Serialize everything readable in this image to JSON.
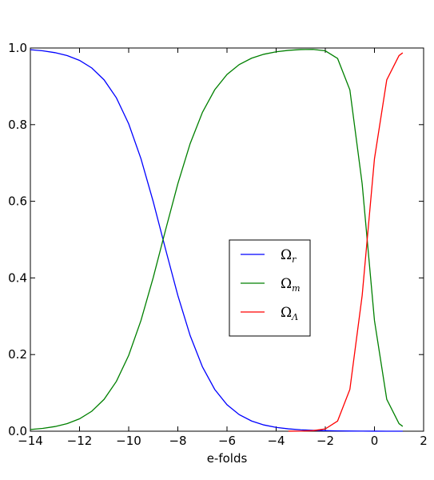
{
  "chart_data": {
    "type": "line",
    "xlabel": "e-folds",
    "x": [
      -14,
      -13.5,
      -13,
      -12.5,
      -12,
      -11.5,
      -11,
      -10.5,
      -10,
      -9.5,
      -9,
      -8.5,
      -8,
      -7.5,
      -7,
      -6.5,
      -6,
      -5.5,
      -5,
      -4.5,
      -4,
      -3.5,
      -3,
      -2.5,
      -2,
      -1.5,
      -1,
      -0.5,
      0,
      0.5,
      1,
      1.15
    ],
    "series": [
      {
        "name": "Ωr",
        "color": "#0000ff",
        "values": [
          0.9955,
          0.9926,
          0.9879,
          0.9802,
          0.9677,
          0.9478,
          0.9168,
          0.8699,
          0.8022,
          0.711,
          0.5987,
          0.475,
          0.3543,
          0.2497,
          0.168,
          0.1091,
          0.0691,
          0.0431,
          0.0266,
          0.0163,
          0.01,
          0.0061,
          0.0037,
          0.0022,
          0.0014,
          0.0008,
          0.0004,
          0.0002,
          0.0001,
          0,
          0,
          0
        ]
      },
      {
        "name": "Ωm",
        "color": "#008000",
        "values": [
          0.0045,
          0.0074,
          0.0121,
          0.0198,
          0.0323,
          0.0522,
          0.0832,
          0.1301,
          0.1978,
          0.289,
          0.4013,
          0.525,
          0.6457,
          0.7503,
          0.832,
          0.8909,
          0.9309,
          0.9569,
          0.9734,
          0.9837,
          0.99,
          0.9939,
          0.996,
          0.9964,
          0.9926,
          0.9727,
          0.8905,
          0.6455,
          0.289,
          0.0832,
          0.0198,
          0.0127
        ]
      },
      {
        "name": "ΩΛ",
        "color": "#ff0000",
        "values": [
          null,
          null,
          null,
          null,
          null,
          null,
          null,
          null,
          null,
          null,
          null,
          null,
          null,
          null,
          null,
          null,
          null,
          null,
          null,
          null,
          null,
          0.0001,
          0.0003,
          0.0014,
          0.006,
          0.0266,
          0.1091,
          0.3543,
          0.7109,
          0.9168,
          0.9802,
          0.9873
        ]
      }
    ],
    "xlim": [
      -14,
      2
    ],
    "ylim": [
      0,
      1
    ],
    "xticks": [
      {
        "value": -14,
        "label": "−14"
      },
      {
        "value": -12,
        "label": "−12"
      },
      {
        "value": -10,
        "label": "−10"
      },
      {
        "value": -8,
        "label": "−8"
      },
      {
        "value": -6,
        "label": "−6"
      },
      {
        "value": -4,
        "label": "−4"
      },
      {
        "value": -2,
        "label": "−2"
      },
      0,
      2
    ],
    "yticks": [
      {
        "value": 0,
        "label": "0.0"
      },
      {
        "value": 0.2,
        "label": "0.2"
      },
      {
        "value": 0.4,
        "label": "0.4"
      },
      {
        "value": 0.6,
        "label": "0.6"
      },
      {
        "value": 0.8,
        "label": "0.8"
      },
      {
        "value": 1,
        "label": "1.0"
      }
    ],
    "legend": "center-right"
  }
}
